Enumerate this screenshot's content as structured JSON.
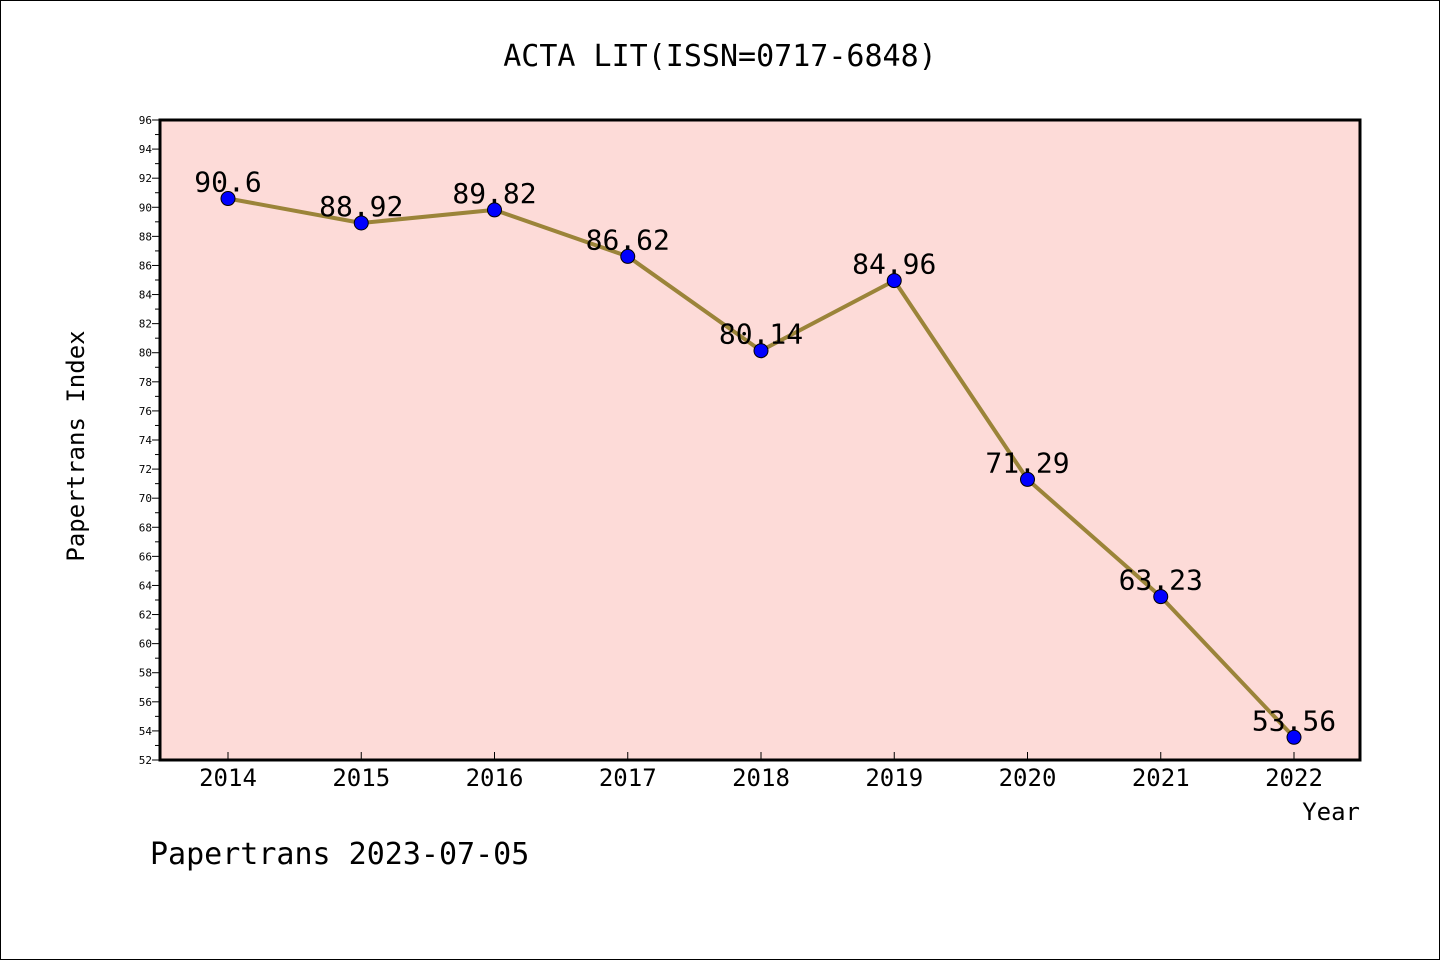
{
  "chart_data": {
    "type": "line",
    "title": "ACTA LIT(ISSN=0717-6848)",
    "xlabel": "Year",
    "ylabel": "Papertrans Index",
    "categories": [
      "2014",
      "2015",
      "2016",
      "2017",
      "2018",
      "2019",
      "2020",
      "2021",
      "2022"
    ],
    "series": [
      {
        "values": [
          90.6,
          88.92,
          89.82,
          86.62,
          80.14,
          84.96,
          71.29,
          63.23,
          53.56
        ],
        "data_labels": [
          "90.6",
          "88.92",
          "89.82",
          "86.62",
          "80.14",
          "84.96",
          "71.29",
          "63.23",
          "53.56"
        ]
      }
    ],
    "ylim": [
      52,
      96
    ],
    "y_major_step": 2,
    "y_tick_labels": [
      "52",
      "54",
      "56",
      "58",
      "60",
      "62",
      "64",
      "66",
      "68",
      "70",
      "72",
      "74",
      "76",
      "78",
      "80",
      "82",
      "84",
      "86",
      "88",
      "90",
      "92",
      "94",
      "96"
    ],
    "grid": false,
    "legend": "none",
    "colors": {
      "plot_background": "#fddbd8",
      "line": "#9b8439",
      "marker": "#0000ff"
    }
  },
  "footer": {
    "text": "Papertrans 2023-07-05"
  }
}
